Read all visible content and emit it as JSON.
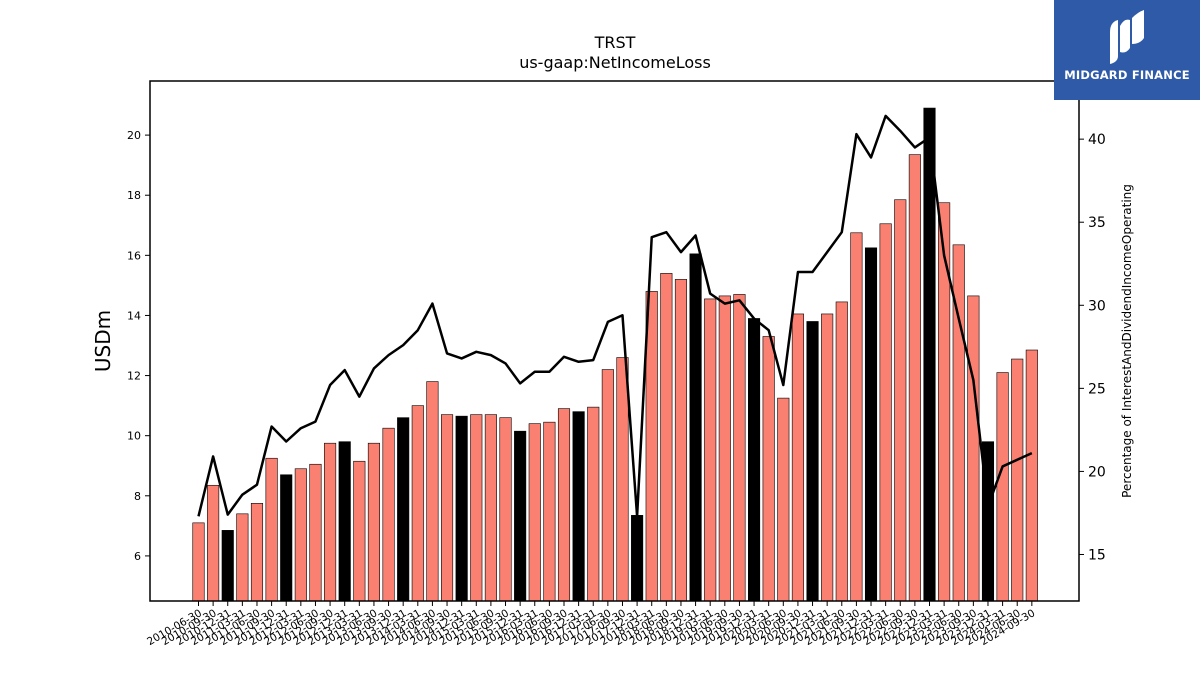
{
  "chart_data": {
    "type": "bar",
    "title": "TRST",
    "subtitle": "us-gaap:NetIncomeLoss",
    "ylabel": "USDm",
    "y2label": "Percentage of InterestAndDividendIncomeOperating",
    "ylim": [
      4.5,
      21.8
    ],
    "y2lim": [
      12.2,
      43.5
    ],
    "yticks": [
      6,
      8,
      10,
      12,
      14,
      16,
      18,
      20
    ],
    "y2ticks": [
      15,
      20,
      25,
      30,
      35,
      40
    ],
    "colors": {
      "bar_default": "#fa8072",
      "bar_highlight": "#000000",
      "line": "#000000"
    },
    "xtick_labels": [
      "2010-06-30",
      "2010-09-30",
      "2010-12-31",
      "2011-03-31",
      "2011-06-30",
      "2011-09-30",
      "2011-12-31",
      "2012-03-31",
      "2012-06-30",
      "2012-09-30",
      "2012-12-31",
      "2013-03-31",
      "2013-06-30",
      "2013-09-30",
      "2013-12-31",
      "2014-03-31",
      "2014-06-30",
      "2014-09-30",
      "2014-12-31",
      "2015-03-31",
      "2015-06-30",
      "2015-09-30",
      "2015-12-31",
      "2016-03-31",
      "2016-06-30",
      "2016-09-30",
      "2016-12-31",
      "2017-03-31",
      "2017-06-30",
      "2017-09-30",
      "2017-12-31",
      "2018-03-31",
      "2018-06-30",
      "2018-09-30",
      "2018-12-31",
      "2019-03-31",
      "2019-06-30",
      "2019-09-30",
      "2019-12-31",
      "2020-03-31",
      "2020-06-30",
      "2020-09-30",
      "2020-12-31",
      "2021-03-31",
      "2021-06-30",
      "2021-09-30",
      "2021-12-31",
      "2022-03-31",
      "2022-06-30",
      "2022-09-30",
      "2022-12-31",
      "2023-03-31",
      "2023-06-30",
      "2023-09-30",
      "2023-12-31",
      "2024-03-31",
      "2024-06-30",
      "2024-09-30"
    ],
    "series": [
      {
        "kind": "bar",
        "values": [
          7.1,
          8.35,
          6.85,
          7.4,
          7.75,
          9.25,
          8.7,
          8.9,
          9.05,
          9.75,
          9.8,
          9.15,
          9.75,
          10.25,
          10.6,
          11.0,
          11.8,
          10.7,
          10.65,
          10.7,
          10.7,
          10.6,
          10.15,
          10.4,
          10.45,
          10.9,
          10.8,
          10.95,
          12.2,
          12.6,
          7.35,
          14.8,
          15.4,
          15.2,
          16.05,
          14.55,
          14.65,
          14.7,
          13.9,
          13.3,
          11.25,
          14.05,
          13.8,
          14.05,
          14.45,
          16.75,
          16.25,
          17.05,
          17.85,
          19.35,
          20.9,
          17.75,
          16.35,
          14.65,
          9.8,
          12.1,
          12.55,
          12.85
        ],
        "highlight": [
          false,
          false,
          true,
          false,
          false,
          false,
          true,
          false,
          false,
          false,
          true,
          false,
          false,
          false,
          true,
          false,
          false,
          false,
          true,
          false,
          false,
          false,
          true,
          false,
          false,
          false,
          true,
          false,
          false,
          false,
          true,
          false,
          false,
          false,
          true,
          false,
          false,
          false,
          true,
          false,
          false,
          false,
          true,
          false,
          false,
          false,
          true,
          false,
          false,
          false,
          true,
          false,
          false,
          false,
          true,
          false,
          false,
          false
        ]
      },
      {
        "kind": "line",
        "axis": "right",
        "values": [
          17.3,
          20.9,
          17.4,
          18.6,
          19.2,
          22.7,
          21.8,
          22.6,
          23.0,
          25.2,
          26.1,
          24.5,
          26.2,
          27.0,
          27.6,
          28.5,
          30.1,
          27.1,
          26.8,
          27.2,
          27.0,
          26.5,
          25.3,
          26.0,
          26.0,
          26.9,
          26.6,
          26.7,
          29.0,
          29.4,
          17.3,
          34.1,
          34.4,
          33.2,
          34.2,
          30.7,
          30.1,
          30.3,
          29.2,
          28.5,
          25.2,
          32.0,
          32.0,
          33.2,
          34.4,
          40.3,
          38.9,
          41.4,
          40.5,
          39.5,
          40.1,
          33.0,
          29.2,
          25.5,
          17.9,
          20.3,
          20.7,
          21.1
        ]
      }
    ]
  },
  "logo": {
    "text": "MIDGARD FINANCE"
  }
}
